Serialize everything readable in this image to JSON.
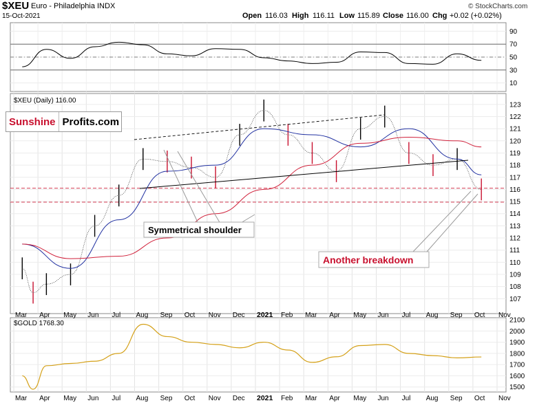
{
  "header": {
    "symbol": "$XEU",
    "name": "Euro - Philadelphia INDX",
    "date": "15-Oct-2021",
    "open_label": "Open",
    "open": "116.03",
    "high_label": "High",
    "high": "116.11",
    "low_label": "Low",
    "low": "115.89",
    "close_label": "Close",
    "close": "116.00",
    "chg_label": "Chg",
    "chg": "+0.02 (+0.02%)",
    "copyright": "© StockCharts.com"
  },
  "logo": {
    "part1": "Sunshine",
    "part2": "Profits.com"
  },
  "annotations": {
    "shoulder": "Symmetrical shoulder",
    "breakdown": "Another breakdown"
  },
  "colors": {
    "price_up": "#000000",
    "price_down": "#c8102e",
    "ma_short": "#1f2fa0",
    "ma_long": "#d0203a",
    "gold_line": "#d4a017",
    "rsi_fill": "#6a8f4e",
    "dashed_support": "#d0203a",
    "trendline": "#000000"
  },
  "chart_data": [
    {
      "type": "line",
      "panel": "RSI",
      "title": "",
      "ylim": [
        0,
        100
      ],
      "y_ticks": [
        10,
        30,
        50,
        70,
        90
      ],
      "reference_lines": [
        30,
        50,
        70
      ],
      "x": [
        "2020-03",
        "2020-04",
        "2020-05",
        "2020-06",
        "2020-07",
        "2020-08",
        "2020-09",
        "2020-10",
        "2020-11",
        "2020-12",
        "2021-01",
        "2021-02",
        "2021-03",
        "2021-04",
        "2021-05",
        "2021-06",
        "2021-07",
        "2021-08",
        "2021-09",
        "2021-10"
      ],
      "values": [
        35,
        62,
        48,
        66,
        73,
        69,
        55,
        52,
        63,
        62,
        49,
        44,
        40,
        42,
        58,
        57,
        40,
        39,
        55,
        45
      ]
    },
    {
      "type": "line",
      "panel": "price",
      "legend": "$XEU (Daily) 116.00",
      "ylim": [
        106,
        123.5
      ],
      "y_ticks": [
        107,
        108,
        109,
        110,
        111,
        112,
        113,
        114,
        115,
        116,
        117,
        118,
        119,
        120,
        121,
        122,
        123
      ],
      "x_ticks": [
        "Mar",
        "Apr",
        "May",
        "Jun",
        "Jul",
        "Aug",
        "Sep",
        "Oct",
        "Nov",
        "Dec",
        "2021",
        "Feb",
        "Mar",
        "Apr",
        "May",
        "Jun",
        "Jul",
        "Aug",
        "Sep",
        "Oct",
        "Nov"
      ],
      "series": [
        {
          "name": "$XEU",
          "x": [
            "2020-03",
            "2020-03b",
            "2020-04",
            "2020-05",
            "2020-06",
            "2020-07",
            "2020-08",
            "2020-09",
            "2020-10",
            "2020-11",
            "2020-12",
            "2021-01",
            "2021-02",
            "2021-03",
            "2021-04",
            "2021-05",
            "2021-06",
            "2021-07",
            "2021-08",
            "2021-09",
            "2021-10"
          ],
          "values": [
            109.5,
            107.5,
            108.2,
            109.0,
            113.0,
            115.5,
            118.5,
            118.3,
            117.8,
            117.0,
            120.5,
            122.5,
            120.5,
            119.0,
            117.5,
            121.0,
            122.0,
            119.0,
            118.0,
            118.5,
            116.0
          ]
        },
        {
          "name": "",
          "x": [
            "2020-03",
            "2020-05",
            "2020-07",
            "2020-09",
            "2020-11",
            "2021-01",
            "2021-03",
            "2021-05",
            "2021-07",
            "2021-09",
            "2021-10"
          ],
          "values": [
            111.5,
            109.5,
            113.5,
            117.5,
            118.0,
            121.0,
            120.5,
            119.5,
            121.0,
            118.5,
            117.2
          ]
        },
        {
          "name": "",
          "x": [
            "2020-03",
            "2020-05",
            "2020-07",
            "2020-09",
            "2020-11",
            "2021-01",
            "2021-03",
            "2021-05",
            "2021-07",
            "2021-09",
            "2021-10"
          ],
          "values": [
            111.5,
            110.3,
            110.5,
            112.0,
            114.0,
            116.0,
            118.0,
            119.8,
            120.3,
            120.0,
            119.5
          ]
        }
      ],
      "reference_lines": [
        116.1,
        114.95
      ]
    },
    {
      "type": "line",
      "panel": "gold",
      "legend": "$GOLD 1768.30",
      "ylim": [
        1480,
        2100
      ],
      "y_ticks": [
        1500,
        1600,
        1700,
        1800,
        1900,
        2000,
        2100
      ],
      "x_ticks": [
        "Mar",
        "Apr",
        "May",
        "Jun",
        "Jul",
        "Aug",
        "Sep",
        "Oct",
        "Nov",
        "Dec",
        "2021",
        "Feb",
        "Mar",
        "Apr",
        "May",
        "Jun",
        "Jul",
        "Aug",
        "Sep",
        "Oct",
        "Nov"
      ],
      "series": [
        {
          "name": "$GOLD",
          "x": [
            "2020-03",
            "2020-03b",
            "2020-04",
            "2020-05",
            "2020-06",
            "2020-07",
            "2020-08",
            "2020-09",
            "2020-10",
            "2020-11",
            "2020-12",
            "2021-01",
            "2021-02",
            "2021-03",
            "2021-04",
            "2021-05",
            "2021-06",
            "2021-07",
            "2021-08",
            "2021-09",
            "2021-10"
          ],
          "values": [
            1600,
            1480,
            1690,
            1710,
            1730,
            1800,
            2060,
            1950,
            1900,
            1880,
            1850,
            1900,
            1830,
            1720,
            1770,
            1870,
            1880,
            1800,
            1780,
            1760,
            1768
          ]
        }
      ]
    }
  ]
}
